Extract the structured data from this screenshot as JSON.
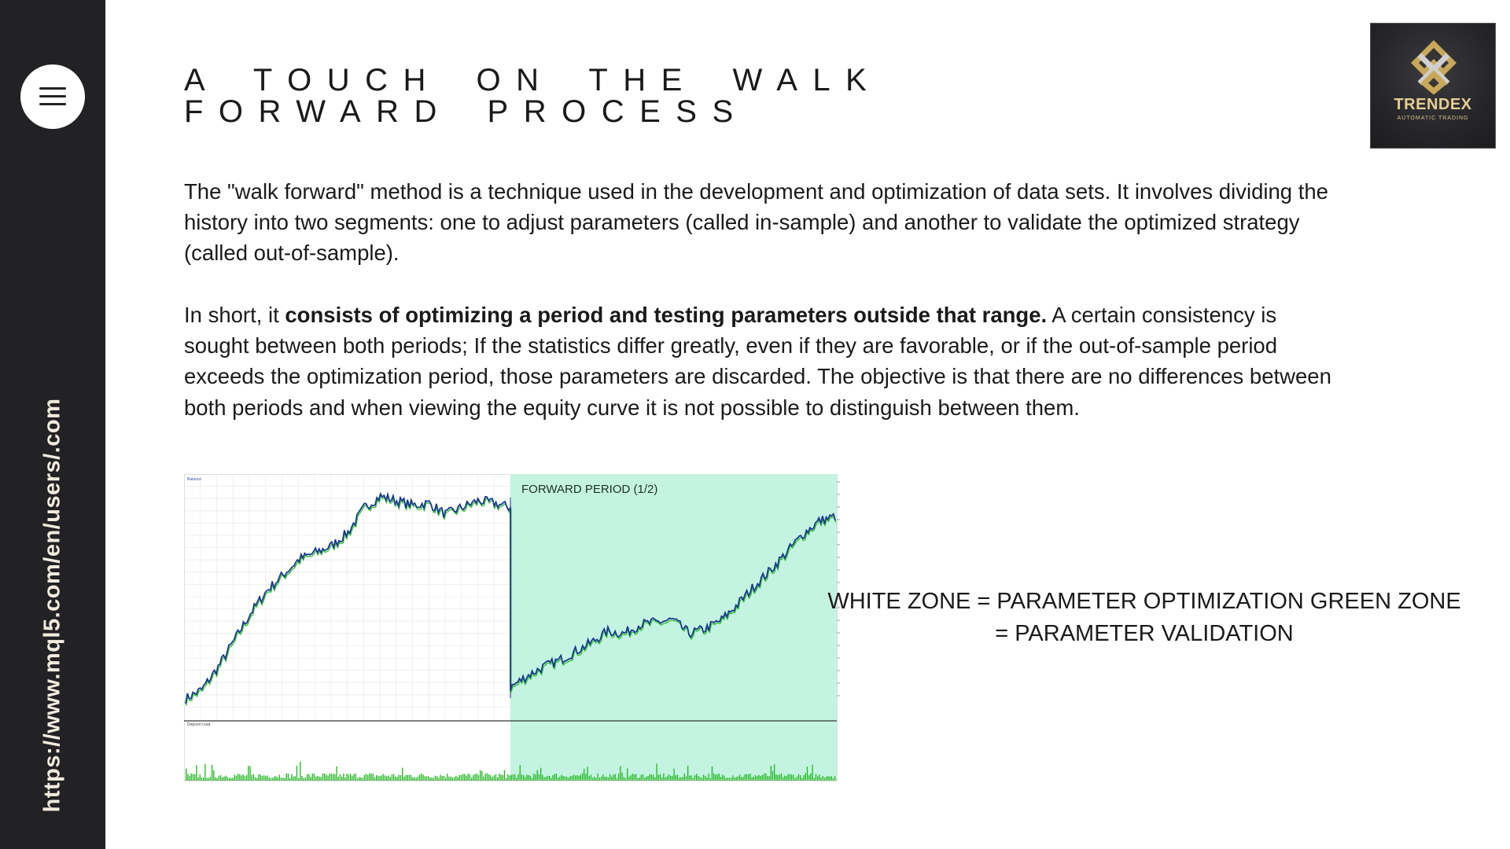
{
  "sidebar": {
    "menu_icon": "hamburger-menu-icon",
    "url": "https://www.mql5.com/en/users/.com"
  },
  "title": "A TOUCH ON THE WALK FORWARD PROCESS",
  "logo": {
    "name": "TRENDEX",
    "tagline": "AUTOMATIC TRADING",
    "icon": "interlocked-diamond-icon"
  },
  "paragraph1": "The \"walk forward\" method is a technique used in the development and optimization of data sets. It involves dividing the history into two segments: one to adjust parameters (called in-sample) and another to validate the optimized strategy (called out-of-sample).",
  "paragraph2": {
    "lead": "In short, it ",
    "bold": "consists of optimizing a period and testing parameters outside that range.",
    "rest": " A certain consistency is sought between both periods; If the statistics differ greatly, even if they are favorable, or if the out-of-sample period exceeds the optimization period, those parameters are discarded. The objective is that there are no differences between both periods and when viewing the equity curve it is not possible to distinguish between them."
  },
  "annotation": "WHITE ZONE = PARAMETER OPTIMIZATION GREEN ZONE = PARAMETER VALIDATION",
  "chart_data": {
    "type": "line",
    "title": "",
    "forward_label": "FORWARD PERIOD (1/2)",
    "legend": [
      "Balance",
      "Equity"
    ],
    "lower_panel_label": "Deposit Load",
    "split_fraction": 0.5,
    "x": [
      0,
      5,
      10,
      15,
      20,
      25,
      30,
      35,
      40,
      45,
      50,
      55,
      60,
      65,
      70,
      75,
      80,
      85,
      90,
      95,
      100
    ],
    "series_in_sample": [
      0.05,
      0.09,
      0.19,
      0.31,
      0.43,
      0.53,
      0.6,
      0.67,
      0.7,
      0.73,
      0.79,
      0.9,
      0.95,
      0.93,
      0.91,
      0.92,
      0.87,
      0.9,
      0.93,
      0.92,
      0.9
    ],
    "series_forward": [
      0.1,
      0.15,
      0.19,
      0.22,
      0.26,
      0.3,
      0.35,
      0.34,
      0.38,
      0.39,
      0.4,
      0.34,
      0.36,
      0.4,
      0.47,
      0.55,
      0.62,
      0.7,
      0.78,
      0.84,
      0.86
    ],
    "colors": {
      "balance": "#1b3a8c",
      "equity": "#35c23a",
      "forward_zone": "#c4f4e1",
      "deposit_load": "#1eb51e"
    }
  }
}
